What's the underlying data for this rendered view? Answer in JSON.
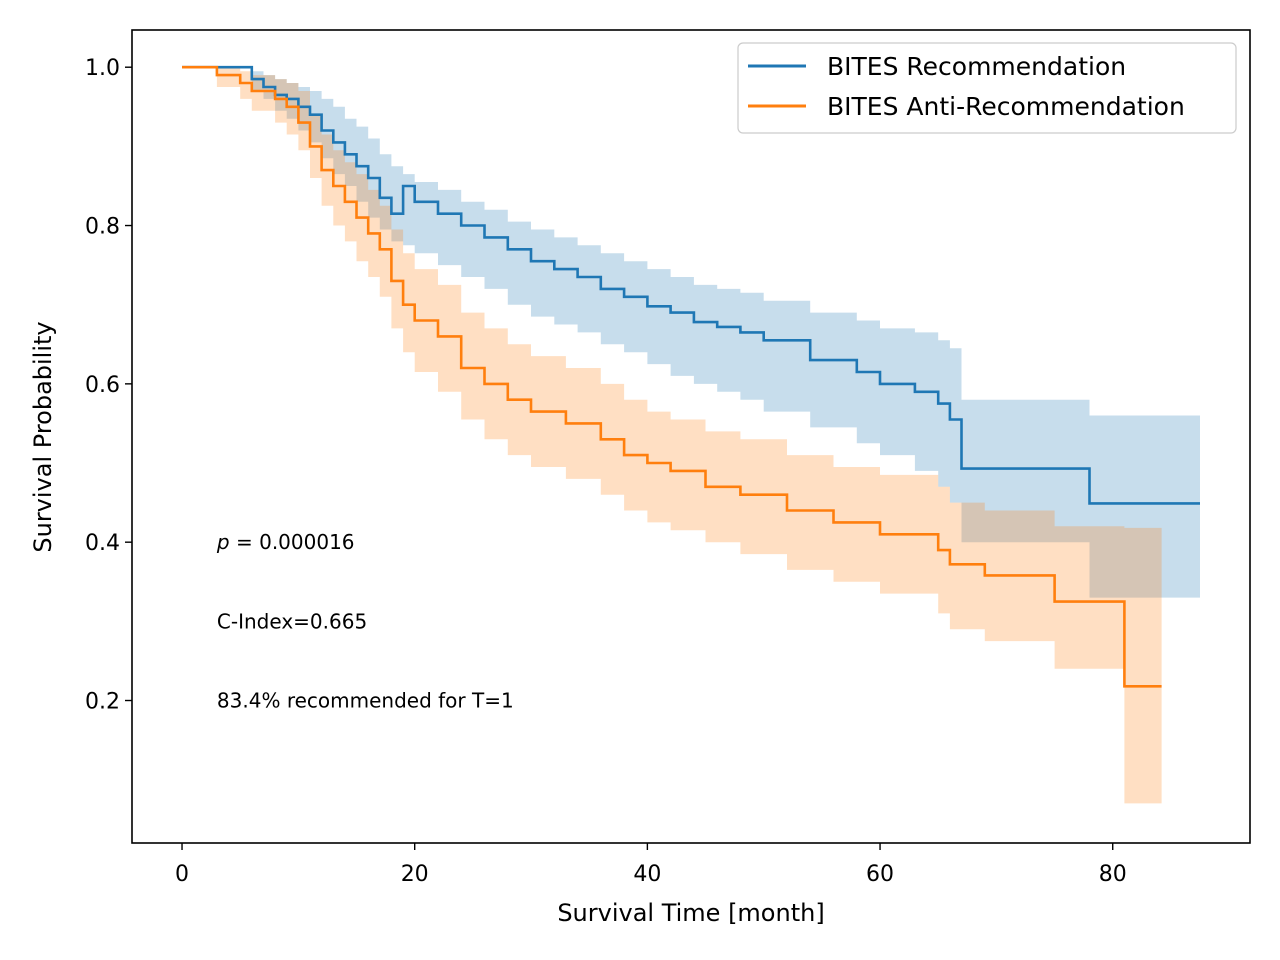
{
  "chart_data": {
    "type": "line",
    "step": true,
    "xlabel": "Survival Time [month]",
    "ylabel": "Survival Probability",
    "xlim": [
      -4.3,
      91.8
    ],
    "ylim": [
      0.02,
      1.047
    ],
    "xticks": [
      0,
      20,
      40,
      60,
      80
    ],
    "xtick_labels": [
      "0",
      "20",
      "40",
      "60",
      "80"
    ],
    "yticks": [
      0.2,
      0.4,
      0.6,
      0.8,
      1.0
    ],
    "ytick_labels": [
      "0.2",
      "0.4",
      "0.6",
      "0.8",
      "1.0"
    ],
    "grid": false,
    "legend": {
      "placement": "top-right"
    },
    "annotations": [
      {
        "prefix": "p",
        "text": " = 0.000016",
        "x": 3,
        "y": 0.4
      },
      {
        "text": "C-Index=0.665",
        "x": 3,
        "y": 0.3
      },
      {
        "text": "83.4% recommended for T=1",
        "x": 3,
        "y": 0.2
      }
    ],
    "series": [
      {
        "name": "BITES Recommendation",
        "color": "#1f77b4",
        "band_color": "#1f77b4",
        "x": [
          0,
          6,
          7,
          8,
          9,
          10,
          11,
          12,
          13,
          14,
          15,
          16,
          17,
          18,
          19,
          20,
          22,
          24,
          26,
          28,
          30,
          32,
          34,
          36,
          38,
          40,
          42,
          44,
          46,
          48,
          50,
          54,
          58,
          60,
          63,
          65,
          66,
          67,
          78,
          87.5
        ],
        "y": [
          1.0,
          0.985,
          0.975,
          0.965,
          0.96,
          0.95,
          0.94,
          0.92,
          0.905,
          0.89,
          0.875,
          0.86,
          0.835,
          0.815,
          0.85,
          0.83,
          0.815,
          0.8,
          0.785,
          0.77,
          0.755,
          0.745,
          0.735,
          0.72,
          0.71,
          0.698,
          0.69,
          0.678,
          0.672,
          0.665,
          0.655,
          0.63,
          0.615,
          0.6,
          0.59,
          0.575,
          0.555,
          0.493,
          0.449,
          0.449
        ],
        "lower": [
          1.0,
          0.97,
          0.96,
          0.945,
          0.935,
          0.92,
          0.905,
          0.885,
          0.865,
          0.85,
          0.83,
          0.81,
          0.795,
          0.78,
          0.775,
          0.765,
          0.75,
          0.735,
          0.72,
          0.7,
          0.685,
          0.675,
          0.665,
          0.65,
          0.64,
          0.625,
          0.61,
          0.6,
          0.59,
          0.58,
          0.565,
          0.545,
          0.525,
          0.51,
          0.49,
          0.47,
          0.45,
          0.4,
          0.33,
          0.33
        ],
        "upper": [
          1.0,
          0.995,
          0.99,
          0.985,
          0.98,
          0.975,
          0.97,
          0.96,
          0.95,
          0.935,
          0.925,
          0.91,
          0.89,
          0.875,
          0.865,
          0.855,
          0.845,
          0.83,
          0.82,
          0.805,
          0.795,
          0.785,
          0.775,
          0.765,
          0.755,
          0.745,
          0.735,
          0.725,
          0.72,
          0.715,
          0.705,
          0.69,
          0.68,
          0.67,
          0.665,
          0.655,
          0.645,
          0.58,
          0.56,
          0.56
        ]
      },
      {
        "name": "BITES Anti-Recommendation",
        "color": "#ff7f0e",
        "band_color": "#ff7f0e",
        "x": [
          0,
          3,
          5,
          6,
          8,
          9,
          10,
          11,
          12,
          13,
          14,
          15,
          16,
          17,
          18,
          19,
          20,
          22,
          24,
          26,
          28,
          30,
          33,
          36,
          38,
          40,
          42,
          45,
          48,
          52,
          56,
          60,
          65,
          66,
          69,
          75,
          81,
          84.2
        ],
        "y": [
          1.0,
          0.99,
          0.98,
          0.97,
          0.96,
          0.95,
          0.93,
          0.9,
          0.87,
          0.85,
          0.83,
          0.81,
          0.79,
          0.77,
          0.73,
          0.7,
          0.68,
          0.66,
          0.62,
          0.6,
          0.58,
          0.565,
          0.55,
          0.53,
          0.51,
          0.5,
          0.49,
          0.47,
          0.46,
          0.44,
          0.425,
          0.41,
          0.39,
          0.372,
          0.358,
          0.325,
          0.218,
          0.218
        ],
        "lower": [
          1.0,
          0.975,
          0.96,
          0.945,
          0.93,
          0.915,
          0.895,
          0.86,
          0.825,
          0.8,
          0.78,
          0.755,
          0.735,
          0.71,
          0.67,
          0.64,
          0.615,
          0.59,
          0.555,
          0.53,
          0.51,
          0.495,
          0.48,
          0.46,
          0.44,
          0.425,
          0.415,
          0.4,
          0.385,
          0.365,
          0.35,
          0.335,
          0.31,
          0.29,
          0.275,
          0.24,
          0.07,
          0.07
        ],
        "upper": [
          1.0,
          1.0,
          0.995,
          0.99,
          0.985,
          0.98,
          0.97,
          0.94,
          0.915,
          0.895,
          0.88,
          0.865,
          0.845,
          0.825,
          0.795,
          0.765,
          0.745,
          0.725,
          0.69,
          0.67,
          0.65,
          0.635,
          0.62,
          0.6,
          0.58,
          0.565,
          0.555,
          0.54,
          0.53,
          0.51,
          0.495,
          0.485,
          0.47,
          0.45,
          0.44,
          0.42,
          0.418,
          0.418
        ]
      }
    ]
  }
}
